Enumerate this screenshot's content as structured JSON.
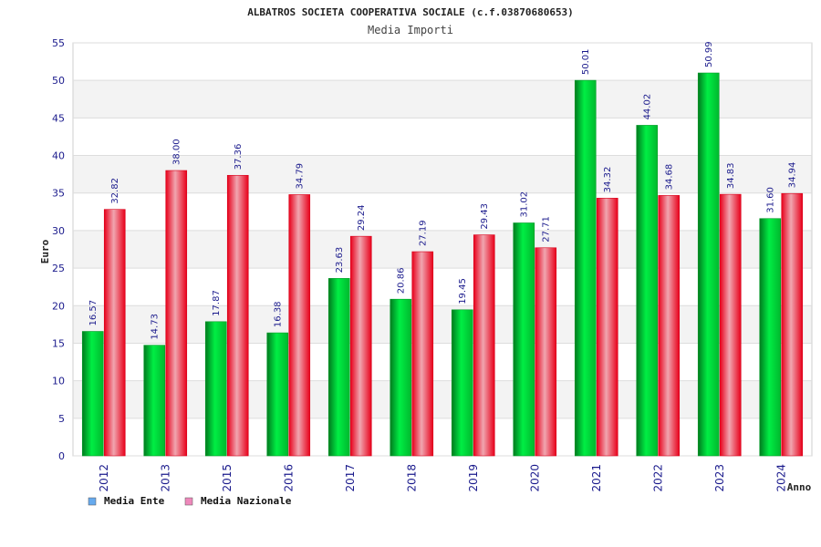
{
  "chart_data": {
    "type": "bar",
    "title": "ALBATROS SOCIETA COOPERATIVA SOCIALE (c.f.03870680653)",
    "subtitle": "Media Importi",
    "xlabel": "Anno",
    "ylabel": "Euro",
    "ylim": [
      0,
      55
    ],
    "yticks": [
      "0",
      "5",
      "10",
      "15",
      "20",
      "25",
      "30",
      "35",
      "40",
      "45",
      "50",
      "55"
    ],
    "grid": true,
    "legend_position": "bottom-left",
    "categories": [
      "2012",
      "2013",
      "2015",
      "2016",
      "2017",
      "2018",
      "2019",
      "2020",
      "2021",
      "2022",
      "2023",
      "2024"
    ],
    "series": [
      {
        "name": "Media Ente",
        "color": "#00cc33",
        "legend_color": "#66aaee",
        "values": [
          16.57,
          14.73,
          17.87,
          16.38,
          23.63,
          20.86,
          19.45,
          31.02,
          50.01,
          44.02,
          50.99,
          31.6
        ],
        "labels": [
          "16.57",
          "14.73",
          "17.87",
          "16.38",
          "23.63",
          "20.86",
          "19.45",
          "31.02",
          "50.01",
          "44.02",
          "50.99",
          "31.60"
        ]
      },
      {
        "name": "Media Nazionale",
        "color": "#ee1122",
        "legend_color": "#ee88bb",
        "values": [
          32.82,
          38.0,
          37.36,
          34.79,
          29.24,
          27.19,
          29.43,
          27.71,
          34.32,
          34.68,
          34.83,
          34.94
        ],
        "labels": [
          "32.82",
          "38.00",
          "37.36",
          "34.79",
          "29.24",
          "27.19",
          "29.43",
          "27.71",
          "34.32",
          "34.68",
          "34.83",
          "34.94"
        ]
      }
    ]
  }
}
